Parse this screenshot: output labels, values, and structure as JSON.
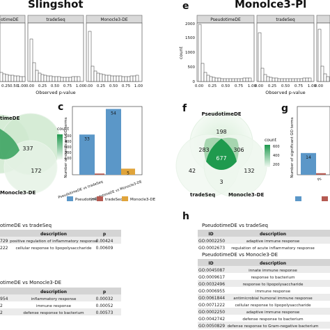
{
  "panel_letters": {
    "c": "c",
    "e": "e",
    "f": "f",
    "g": "g",
    "h": "h"
  },
  "titles": {
    "left": "Slingshot",
    "right": "Monolce3-Pl"
  },
  "hist_left": {
    "strip_labels": [
      "otimeDE",
      "tradeSeq",
      "Monocle3-DE"
    ],
    "xticks": [
      "0.00",
      "0.25",
      "0.50",
      "0.75",
      "1.00"
    ],
    "xticks_partial": [
      "0.25",
      "0.50",
      "0.75",
      "1.00"
    ],
    "xlabel": "Observed p-value"
  },
  "hist_right": {
    "strip_labels": [
      "PseudotimeDE",
      "tradeSeq",
      "Monocle3-DE"
    ],
    "yticks": [
      "0",
      "500",
      "1000",
      "1500",
      "2000"
    ],
    "ylabel": "count",
    "xticks": [
      "0.00",
      "0.25",
      "0.50",
      "0.75",
      "1.00"
    ],
    "xlabel": "Observed p-value"
  },
  "venn_left": {
    "labels": {
      "a": "timeDE",
      "c": "Monocle3-DE"
    },
    "numbers": {
      "center": "337",
      "right": "172"
    },
    "legend_title": "count",
    "legend_ticks": [
      "500",
      "400",
      "300",
      "200",
      "100"
    ]
  },
  "venn_right": {
    "labels": {
      "a": "PseudotimeDE",
      "b": "tradeSeq",
      "c": "Monocle3-DE"
    },
    "numbers": {
      "a_only": "198",
      "ab": "283",
      "ac": "306",
      "abc": "677",
      "b_only": "42",
      "c_only": "132",
      "bc": "3"
    },
    "legend_title": "count",
    "legend_ticks": [
      "600",
      "400",
      "200"
    ]
  },
  "chart_data": [
    {
      "type": "bar",
      "panel": "c",
      "ylabel": "Number of significant GO terms",
      "categories": [
        "PseudotimeDE vs tradeSeq",
        "PseudotimeDE vs Monocle3-DE"
      ],
      "series": [
        {
          "name": "PseudotimeDE",
          "values": [
            33,
            54
          ]
        },
        {
          "name": "tradeSeq",
          "values": [
            1,
            null
          ]
        },
        {
          "name": "Monocle3-DE",
          "values": [
            null,
            5
          ]
        }
      ],
      "data_labels": [
        "33",
        "54",
        "5"
      ],
      "ylim": [
        0,
        56
      ]
    },
    {
      "type": "bar",
      "panel": "g",
      "ylabel": "Number of significant GO terms",
      "categories": [
        "Ps"
      ],
      "series": [
        {
          "name": "PseudotimeDE",
          "values": [
            14
          ]
        },
        {
          "name": "tradeSeq",
          "values": [
            1
          ]
        }
      ],
      "data_labels": [
        "14"
      ],
      "ylim": [
        0,
        44
      ]
    }
  ],
  "legend_colors": {
    "PseudotimeDE": "#5b97c8",
    "tradeSeq": "#b55a52",
    "Monocle3-DE": "#e0a43a"
  },
  "table_left_1": {
    "title": "otimeDE vs tradeSeq",
    "headers": [
      "description",
      "p"
    ],
    "rows": [
      {
        "id": "729",
        "description": "positive regulation of inflammatory response",
        "p": "0.00424"
      },
      {
        "id": "222",
        "description": "cellular response to lipopolysaccharide",
        "p": "0.00609"
      }
    ]
  },
  "table_left_2": {
    "title": "otimeDE vs Monocle3-DE",
    "headers": [
      "description",
      "p"
    ],
    "rows": [
      {
        "id": "954",
        "description": "inflammatory response",
        "p": "0.00032"
      },
      {
        "id": "2",
        "description": "immune response",
        "p": "0.00052"
      },
      {
        "id": "2",
        "description": "defense response to bacterium",
        "p": "0.00573"
      }
    ]
  },
  "table_right_1": {
    "title": "PseudotimeDE vs tradeSeq",
    "headers": [
      "ID",
      "description"
    ],
    "rows": [
      {
        "id": "GO:0002250",
        "description": "adaptive immune response"
      },
      {
        "id": "GO:0002673",
        "description": "regulation of acute inflammatory response"
      }
    ]
  },
  "table_right_2": {
    "title": "PseudotimeDE vs Monocle3-DE",
    "headers": [
      "ID",
      "description"
    ],
    "rows": [
      {
        "id": "GO:0045087",
        "description": "innate immune response"
      },
      {
        "id": "GO:0009617",
        "description": "response to bacterium"
      },
      {
        "id": "GO:0032496",
        "description": "response to lipopolysaccharide"
      },
      {
        "id": "GO:0006955",
        "description": "immune response"
      },
      {
        "id": "GO:0061844",
        "description": "antimicrobial humoral immune response"
      },
      {
        "id": "GO:0071222",
        "description": "cellular response to lipopolysaccharide"
      },
      {
        "id": "GO:0002250",
        "description": "adaptive immune response"
      },
      {
        "id": "GO:0042742",
        "description": "defense response to bacterium"
      },
      {
        "id": "GO:0050829",
        "description": "defense response to Gram-negative bacterium"
      }
    ]
  }
}
